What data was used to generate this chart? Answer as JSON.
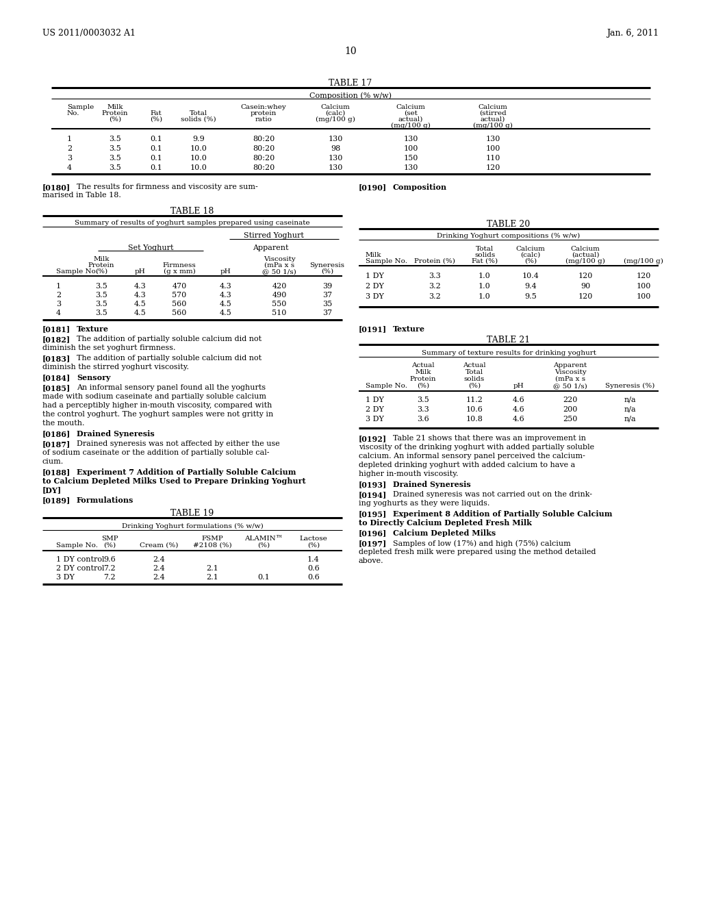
{
  "bg_color": "#ffffff",
  "header_left": "US 2011/0003032 A1",
  "header_right": "Jan. 6, 2011",
  "page_number": "10",
  "table17_rows": [
    [
      "1",
      "3.5",
      "0.1",
      "9.9",
      "80:20",
      "130",
      "130",
      "130"
    ],
    [
      "2",
      "3.5",
      "0.1",
      "10.0",
      "80:20",
      "98",
      "100",
      "100"
    ],
    [
      "3",
      "3.5",
      "0.1",
      "10.0",
      "80:20",
      "130",
      "150",
      "110"
    ],
    [
      "4",
      "3.5",
      "0.1",
      "10.0",
      "80:20",
      "130",
      "130",
      "120"
    ]
  ],
  "table18_rows": [
    [
      "1",
      "3.5",
      "4.3",
      "470",
      "4.3",
      "420",
      "39"
    ],
    [
      "2",
      "3.5",
      "4.3",
      "570",
      "4.3",
      "490",
      "37"
    ],
    [
      "3",
      "3.5",
      "4.5",
      "560",
      "4.5",
      "550",
      "35"
    ],
    [
      "4",
      "3.5",
      "4.5",
      "560",
      "4.5",
      "510",
      "37"
    ]
  ],
  "table19_rows": [
    [
      "1 DY control",
      "9.6",
      "2.4",
      "",
      "",
      "1.4"
    ],
    [
      "2 DY control",
      "7.2",
      "2.4",
      "2.1",
      "",
      "0.6"
    ],
    [
      "3 DY",
      "7.2",
      "2.4",
      "2.1",
      "0.1",
      "0.6"
    ]
  ],
  "table20_rows": [
    [
      "1 DY",
      "3.3",
      "1.0",
      "10.4",
      "120",
      "120"
    ],
    [
      "2 DY",
      "3.2",
      "1.0",
      "9.4",
      "90",
      "100"
    ],
    [
      "3 DY",
      "3.2",
      "1.0",
      "9.5",
      "120",
      "100"
    ]
  ],
  "table21_rows": [
    [
      "1 DY",
      "3.5",
      "11.2",
      "4.6",
      "220",
      "n/a"
    ],
    [
      "2 DY",
      "3.3",
      "10.6",
      "4.6",
      "200",
      "n/a"
    ],
    [
      "3 DY",
      "3.6",
      "10.8",
      "4.6",
      "250",
      "n/a"
    ]
  ]
}
